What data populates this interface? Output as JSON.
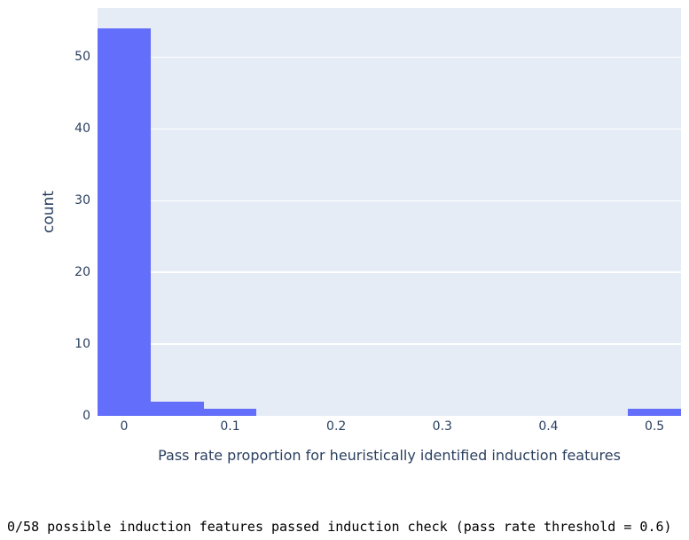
{
  "chart_data": {
    "type": "bar",
    "subtype": "histogram",
    "title": "",
    "xlabel": "Pass rate proportion for heuristically identified induction features",
    "ylabel": "count",
    "x_tick_values": [
      0,
      0.1,
      0.2,
      0.3,
      0.4,
      0.5
    ],
    "x_tick_labels": [
      "0",
      "0.1",
      "0.2",
      "0.3",
      "0.4",
      "0.5"
    ],
    "y_tick_values": [
      0,
      10,
      20,
      30,
      40,
      50
    ],
    "y_tick_labels": [
      "0",
      "10",
      "20",
      "30",
      "40",
      "50"
    ],
    "x_range": [
      -0.025,
      0.525
    ],
    "y_range": [
      0,
      56.84
    ],
    "bin_size": 0.05,
    "bins": [
      {
        "center": 0.0,
        "count": 54
      },
      {
        "center": 0.05,
        "count": 2
      },
      {
        "center": 0.1,
        "count": 1
      },
      {
        "center": 0.5,
        "count": 1
      }
    ],
    "grid": "horizontal-only",
    "legend_position": "none",
    "colors": {
      "bar": "#636efa",
      "plot_background": "#e5ecf6",
      "grid": "#ffffff",
      "axis_text": "#2a3f5f",
      "figure_background": "#ffffff"
    }
  },
  "console": {
    "text": "0/58 possible induction features passed induction check (pass rate threshold = 0.6)"
  }
}
